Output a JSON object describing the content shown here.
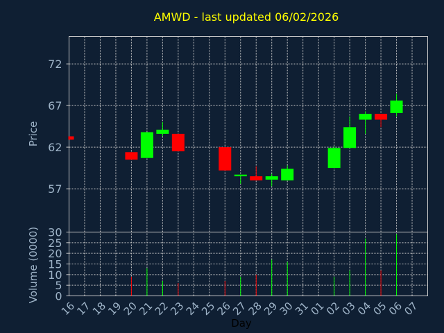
{
  "chart_data": {
    "type": "candlestick",
    "title": "AMWD - last updated 06/02/2026",
    "xlabel": "Day",
    "price_panel": {
      "ylabel": "Price",
      "yticks": [
        57,
        62,
        67,
        72
      ],
      "ylim": [
        51.8,
        75.3
      ],
      "grid": true
    },
    "volume_panel": {
      "ylabel": "Volume (0000)",
      "yticks": [
        0,
        5,
        10,
        15,
        20,
        25,
        30
      ],
      "ylim": [
        0,
        30
      ],
      "grid": true
    },
    "categories": [
      "16",
      "17",
      "18",
      "19",
      "20",
      "21",
      "22",
      "23",
      "24",
      "25",
      "26",
      "27",
      "28",
      "29",
      "30",
      "31",
      "01",
      "02",
      "03",
      "04",
      "05",
      "06",
      "07"
    ],
    "candles": [
      {
        "day": "16",
        "open": 63.3,
        "close": 62.9,
        "high": 63.3,
        "low": 62.9,
        "volume": 0
      },
      {
        "day": "20",
        "open": 61.4,
        "close": 60.5,
        "high": 61.4,
        "low": 60.5,
        "volume": 9
      },
      {
        "day": "21",
        "open": 60.7,
        "close": 63.8,
        "high": 63.8,
        "low": 60.7,
        "volume": 13
      },
      {
        "day": "22",
        "open": 63.6,
        "close": 64.1,
        "high": 65.0,
        "low": 63.3,
        "volume": 7
      },
      {
        "day": "23",
        "open": 63.6,
        "close": 61.5,
        "high": 63.6,
        "low": 61.5,
        "volume": 6
      },
      {
        "day": "26",
        "open": 62.0,
        "close": 59.2,
        "high": 62.0,
        "low": 59.2,
        "volume": 7
      },
      {
        "day": "27",
        "open": 58.5,
        "close": 58.7,
        "high": 58.7,
        "low": 57.6,
        "volume": 9
      },
      {
        "day": "28",
        "open": 58.5,
        "close": 58.0,
        "high": 59.7,
        "low": 58.0,
        "volume": 10
      },
      {
        "day": "29",
        "open": 58.1,
        "close": 58.5,
        "high": 58.8,
        "low": 57.3,
        "volume": 17
      },
      {
        "day": "30",
        "open": 58.0,
        "close": 59.4,
        "high": 59.8,
        "low": 58.0,
        "volume": 16
      },
      {
        "day": "02",
        "open": 59.5,
        "close": 61.9,
        "high": 62.1,
        "low": 59.5,
        "volume": 9
      },
      {
        "day": "03",
        "open": 61.9,
        "close": 64.4,
        "high": 65.7,
        "low": 61.9,
        "volume": 12
      },
      {
        "day": "04",
        "open": 65.3,
        "close": 66.0,
        "high": 66.3,
        "low": 63.6,
        "volume": 27
      },
      {
        "day": "05",
        "open": 66.0,
        "close": 65.3,
        "high": 66.0,
        "low": 64.4,
        "volume": 12
      },
      {
        "day": "06",
        "open": 66.1,
        "close": 67.6,
        "high": 68.4,
        "low": 65.7,
        "volume": 29
      }
    ],
    "colors": {
      "background": "#0f1f33",
      "up": "#00ff00",
      "down": "#ff0000",
      "grid": "#c8c8c8",
      "axis_text": "#9fb4c8",
      "title": "#ffff00"
    }
  }
}
